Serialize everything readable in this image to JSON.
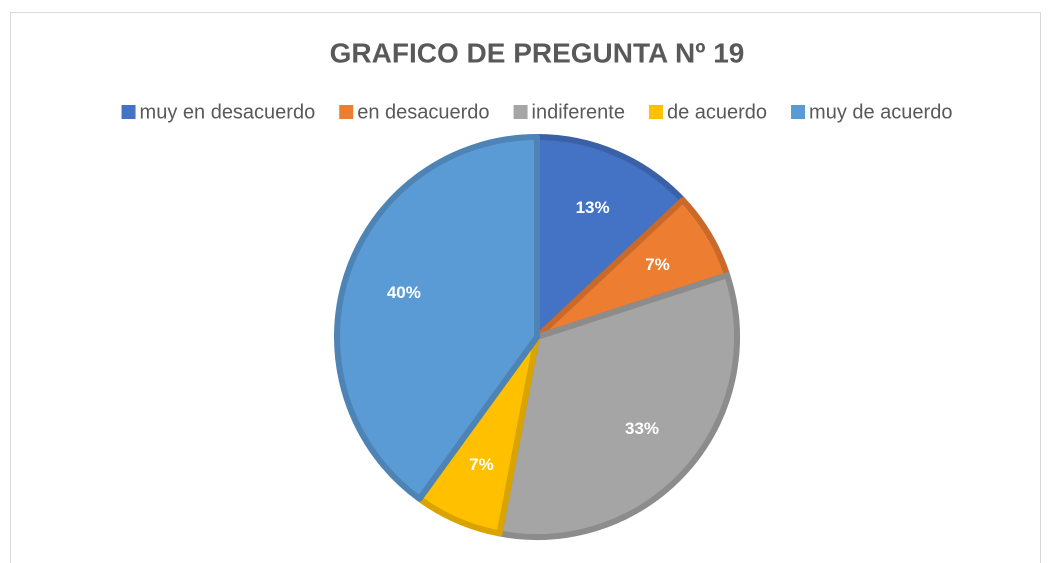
{
  "chart_data": {
    "type": "pie",
    "title": "GRAFICO DE PREGUNTA Nº 19",
    "categories": [
      "muy en desacuerdo",
      "en desacuerdo",
      "indiferente",
      "de acuerdo",
      "muy de acuerdo"
    ],
    "values": [
      13,
      7,
      33,
      7,
      40
    ],
    "value_labels": [
      "13%",
      "7%",
      "33%",
      "7%",
      "40%"
    ],
    "colors": [
      "#4472c4",
      "#ed7d31",
      "#a5a5a5",
      "#ffc000",
      "#5b9bd5"
    ],
    "legend": "top"
  }
}
